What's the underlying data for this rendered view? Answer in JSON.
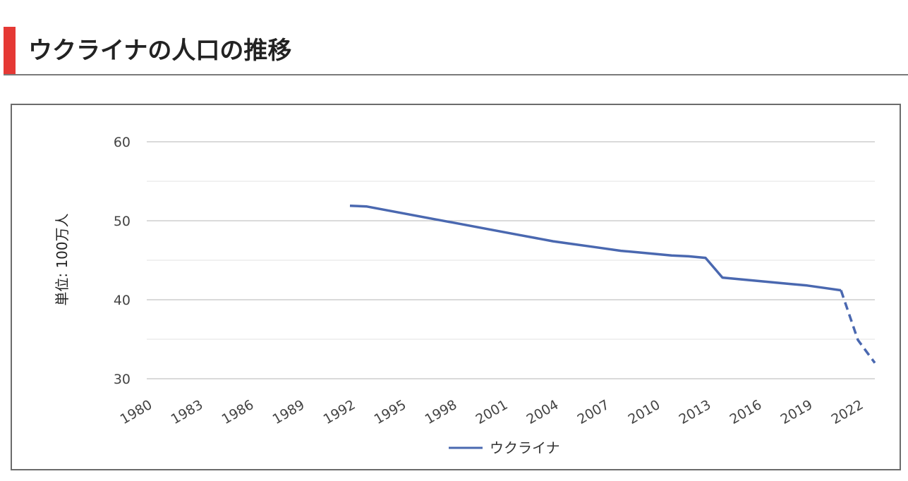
{
  "header": {
    "title": "ウクライナの人口の推移",
    "accent_color": "#e53935"
  },
  "chart_data": {
    "type": "line",
    "title": "ウクライナの人口の推移",
    "ylabel": "単位: 100万人",
    "xlabel": "",
    "xlim": [
      1980,
      2023
    ],
    "ylim": [
      30,
      60
    ],
    "x_ticks": [
      "1980",
      "1983",
      "1986",
      "1989",
      "1992",
      "1995",
      "1998",
      "2001",
      "2004",
      "2007",
      "2010",
      "2013",
      "2016",
      "2019",
      "2022"
    ],
    "y_ticks": [
      "30",
      "40",
      "50",
      "60"
    ],
    "grid": true,
    "legend": "bottom-center",
    "series": [
      {
        "name": "ウクライナ",
        "color": "#4a68b0",
        "style": "solid",
        "x": [
          1992,
          1993,
          1994,
          1995,
          1996,
          1997,
          1998,
          1999,
          2000,
          2001,
          2002,
          2003,
          2004,
          2005,
          2006,
          2007,
          2008,
          2009,
          2010,
          2011,
          2012,
          2013,
          2014,
          2015,
          2016,
          2017,
          2018,
          2019,
          2020,
          2021
        ],
        "values": [
          51.9,
          51.8,
          51.4,
          51.0,
          50.6,
          50.2,
          49.8,
          49.4,
          49.0,
          48.6,
          48.2,
          47.8,
          47.4,
          47.1,
          46.8,
          46.5,
          46.2,
          46.0,
          45.8,
          45.6,
          45.5,
          45.3,
          42.8,
          42.6,
          42.4,
          42.2,
          42.0,
          41.8,
          41.5,
          41.2
        ]
      },
      {
        "name": "",
        "color": "#4a68b0",
        "style": "dashed",
        "x": [
          2021,
          2022,
          2023
        ],
        "values": [
          41.2,
          34.9,
          32.0
        ]
      }
    ]
  }
}
